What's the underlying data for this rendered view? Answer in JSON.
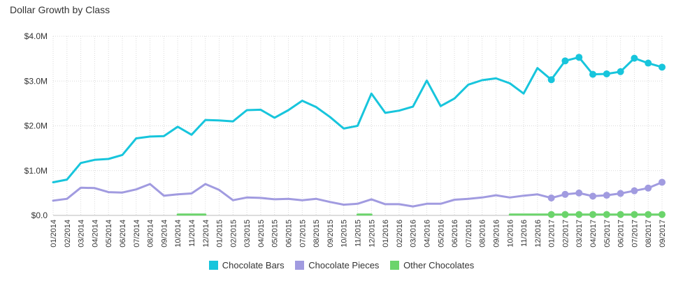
{
  "title": "Dollar Growth by Class",
  "chart_data": {
    "type": "line",
    "title": "Dollar Growth by Class",
    "xlabel": "",
    "ylabel": "",
    "ylim": [
      0,
      4000000
    ],
    "yticks": [
      {
        "value": 0,
        "label": "$0.0"
      },
      {
        "value": 1000000,
        "label": "$1.0M"
      },
      {
        "value": 2000000,
        "label": "$2.0M"
      },
      {
        "value": 3000000,
        "label": "$3.0M"
      },
      {
        "value": 4000000,
        "label": "$4.0M"
      }
    ],
    "grid": true,
    "legend_position": "bottom",
    "categories": [
      "01/2014",
      "02/2014",
      "03/2014",
      "04/2014",
      "05/2014",
      "06/2014",
      "07/2014",
      "08/2014",
      "09/2014",
      "10/2014",
      "11/2014",
      "12/2014",
      "01/2015",
      "02/2015",
      "03/2015",
      "04/2015",
      "05/2015",
      "06/2015",
      "07/2015",
      "08/2015",
      "09/2015",
      "10/2015",
      "11/2015",
      "12/2015",
      "01/2016",
      "02/2016",
      "03/2016",
      "04/2016",
      "05/2016",
      "06/2016",
      "07/2016",
      "08/2016",
      "09/2016",
      "10/2016",
      "11/2016",
      "12/2016",
      "01/2017",
      "02/2017",
      "03/2017",
      "04/2017",
      "05/2017",
      "06/2017",
      "07/2017",
      "08/2017",
      "09/2017"
    ],
    "xtick_labels": [
      "01/2014",
      "02/2014",
      "03/2014",
      "04/2014",
      "05/2014",
      "06/2014",
      "07/2014",
      "08/2014",
      "09/2014",
      "10/2014",
      "11/2014",
      "12/2014",
      "01/2015",
      "02/2015",
      "03/2015",
      "04/2015",
      "05/2015",
      "06/2015",
      "07/2015",
      "08/2015",
      "09/2015",
      "10/2015",
      "11/2015",
      "12/2015",
      "01/2016",
      "02/2016",
      "03/2016",
      "04/2016",
      "05/2016",
      "06/2016",
      "07/2016",
      "08/2016",
      "09/2016",
      "10/2016",
      "11/2016",
      "12/2016",
      "01/2017",
      "02/2017",
      "03/2017",
      "04/2017",
      "05/2017",
      "06/2017",
      "07/2017",
      "08/2017",
      "09/2017"
    ],
    "series": [
      {
        "name": "Chocolate Bars",
        "color": "#17c5dc",
        "values": [
          740000,
          800000,
          1170000,
          1240000,
          1260000,
          1350000,
          1720000,
          1760000,
          1770000,
          1980000,
          1800000,
          2130000,
          2120000,
          2100000,
          2350000,
          2360000,
          2180000,
          2350000,
          2560000,
          2420000,
          2200000,
          1940000,
          2000000,
          2720000,
          2290000,
          2340000,
          2430000,
          3010000,
          2440000,
          2610000,
          2920000,
          3020000,
          3060000,
          2950000,
          2720000,
          3290000,
          3030000,
          3450000,
          3530000,
          3150000,
          3160000,
          3210000,
          3510000,
          3400000,
          3310000
        ],
        "markers_from_index": 36
      },
      {
        "name": "Chocolate Pieces",
        "color": "#a19be0",
        "values": [
          330000,
          370000,
          620000,
          610000,
          520000,
          510000,
          580000,
          700000,
          440000,
          470000,
          490000,
          700000,
          570000,
          340000,
          400000,
          390000,
          360000,
          370000,
          340000,
          370000,
          300000,
          240000,
          260000,
          360000,
          250000,
          250000,
          200000,
          260000,
          260000,
          350000,
          370000,
          400000,
          450000,
          400000,
          440000,
          470000,
          390000,
          470000,
          500000,
          430000,
          450000,
          490000,
          550000,
          610000,
          740000
        ],
        "markers_from_index": 36
      },
      {
        "name": "Other Chocolates",
        "color": "#6bd46b",
        "values": [
          null,
          null,
          null,
          null,
          null,
          null,
          null,
          null,
          null,
          20000,
          20000,
          20000,
          null,
          null,
          null,
          null,
          null,
          null,
          null,
          null,
          null,
          null,
          20000,
          20000,
          null,
          null,
          null,
          null,
          null,
          null,
          null,
          null,
          null,
          20000,
          20000,
          20000,
          20000,
          20000,
          20000,
          20000,
          20000,
          20000,
          20000,
          20000,
          20000
        ],
        "markers_from_index": 36
      }
    ]
  }
}
